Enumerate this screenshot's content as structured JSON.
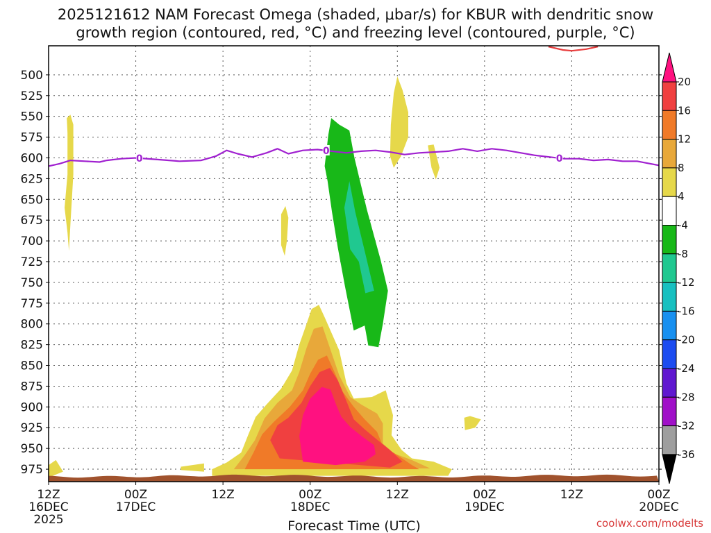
{
  "chart_data": {
    "type": "heatmap",
    "title_line1": "2025121612 NAM Forecast Omega (shaded, μbar/s) for KBUR with dendritic snow",
    "title_line2": "growth region (contoured, red, °C) and freezing level (contoured, purple, °C)",
    "xlabel": "Forecast Time (UTC)",
    "ylabel": "",
    "credit": "coolwx.com/modelts",
    "y_axis": {
      "unit": "hPa",
      "range": [
        990,
        465
      ],
      "tick_labels": [
        "500",
        "525",
        "550",
        "575",
        "600",
        "625",
        "650",
        "675",
        "700",
        "725",
        "750",
        "775",
        "800",
        "825",
        "850",
        "875",
        "900",
        "925",
        "950",
        "975"
      ]
    },
    "x_axis": {
      "unit": "forecast hours",
      "range": [
        0,
        84
      ],
      "ticks": [
        {
          "hour": 0,
          "l1": "12Z",
          "l2": "16DEC",
          "l3": "2025"
        },
        {
          "hour": 12,
          "l1": "00Z",
          "l2": "17DEC",
          "l3": ""
        },
        {
          "hour": 24,
          "l1": "12Z",
          "l2": "",
          "l3": ""
        },
        {
          "hour": 36,
          "l1": "00Z",
          "l2": "18DEC",
          "l3": ""
        },
        {
          "hour": 48,
          "l1": "12Z",
          "l2": "",
          "l3": ""
        },
        {
          "hour": 60,
          "l1": "00Z",
          "l2": "19DEC",
          "l3": ""
        },
        {
          "hour": 72,
          "l1": "12Z",
          "l2": "",
          "l3": ""
        },
        {
          "hour": 84,
          "l1": "00Z",
          "l2": "20DEC",
          "l3": ""
        }
      ]
    },
    "colorbar": {
      "labels": [
        "20",
        "16",
        "12",
        "8",
        "4",
        "-4",
        "-8",
        "-12",
        "-16",
        "-20",
        "-24",
        "-28",
        "-32",
        "-36"
      ],
      "colors": [
        "#ff1180",
        "#f04040",
        "#f07a28",
        "#e8a83a",
        "#e6d84a",
        "#ffffff",
        "#18b818",
        "#20c890",
        "#18c0c0",
        "#1890f0",
        "#1c4cf0",
        "#6018d0",
        "#a010c8",
        "#9e9e9e",
        "#000000"
      ]
    },
    "freezing_level": {
      "label": "0",
      "color": "#a020d0",
      "points": [
        [
          0,
          610
        ],
        [
          1.5,
          607
        ],
        [
          3,
          603
        ],
        [
          5,
          604
        ],
        [
          7,
          605
        ],
        [
          8,
          603
        ],
        [
          10,
          601
        ],
        [
          12,
          600
        ],
        [
          15,
          602
        ],
        [
          18,
          604
        ],
        [
          21,
          603
        ],
        [
          23,
          598
        ],
        [
          24.5,
          591
        ],
        [
          26,
          595
        ],
        [
          28,
          599
        ],
        [
          30,
          594
        ],
        [
          31.5,
          589
        ],
        [
          33,
          595
        ],
        [
          35,
          591
        ],
        [
          37,
          590
        ],
        [
          39,
          592
        ],
        [
          41,
          594
        ],
        [
          43,
          592
        ],
        [
          45,
          591
        ],
        [
          47,
          593
        ],
        [
          49,
          596
        ],
        [
          51,
          594
        ],
        [
          53,
          593
        ],
        [
          55,
          592
        ],
        [
          57,
          589
        ],
        [
          59,
          592
        ],
        [
          61,
          589
        ],
        [
          63,
          591
        ],
        [
          65,
          594
        ],
        [
          67,
          597
        ],
        [
          69,
          599
        ],
        [
          71,
          601
        ],
        [
          73,
          601
        ],
        [
          75,
          603
        ],
        [
          77,
          602
        ],
        [
          79,
          604
        ],
        [
          81,
          604
        ],
        [
          84,
          609
        ]
      ],
      "label_hours": [
        12.5,
        38.2,
        70.3
      ]
    },
    "dgz_contour": {
      "color": "#e83c3c",
      "points": [
        [
          68.8,
          466
        ],
        [
          70.8,
          470
        ],
        [
          72,
          471
        ],
        [
          74,
          469
        ],
        [
          75.6,
          466
        ]
      ]
    },
    "omega_regions": [
      {
        "name": "yellow-early",
        "value": 4,
        "color": "#e6d84a",
        "points": [
          [
            2.5,
            552
          ],
          [
            3.0,
            548
          ],
          [
            3.4,
            560
          ],
          [
            3.4,
            620
          ],
          [
            3.0,
            680
          ],
          [
            2.8,
            712
          ],
          [
            2.6,
            690
          ],
          [
            2.2,
            660
          ],
          [
            2.6,
            620
          ],
          [
            2.6,
            570
          ]
        ]
      },
      {
        "name": "yellow-mid",
        "value": 4,
        "color": "#e6d84a",
        "points": [
          [
            32.0,
            668
          ],
          [
            32.6,
            658
          ],
          [
            33.0,
            672
          ],
          [
            32.8,
            700
          ],
          [
            32.5,
            718
          ],
          [
            32.0,
            705
          ]
        ]
      },
      {
        "name": "yellow-upper",
        "value": 4,
        "color": "#e6d84a",
        "points": [
          [
            47.1,
            560
          ],
          [
            47.5,
            522
          ],
          [
            48.0,
            502
          ],
          [
            48.7,
            518
          ],
          [
            49.5,
            545
          ],
          [
            49.5,
            575
          ],
          [
            48.5,
            598
          ],
          [
            47.5,
            612
          ],
          [
            47.0,
            598
          ]
        ]
      },
      {
        "name": "yellow-upper2",
        "value": 4,
        "color": "#e6d84a",
        "points": [
          [
            52.2,
            585
          ],
          [
            53.0,
            584
          ],
          [
            53.8,
            612
          ],
          [
            53.3,
            626
          ],
          [
            52.7,
            612
          ]
        ]
      },
      {
        "name": "yellow-small",
        "value": 4,
        "color": "#e6d84a",
        "points": [
          [
            57.2,
            913
          ],
          [
            58.0,
            911
          ],
          [
            59.5,
            915
          ],
          [
            58.7,
            925
          ],
          [
            57.3,
            928
          ]
        ]
      },
      {
        "name": "yellow-strip",
        "value": 4,
        "color": "#e6d84a",
        "points": [
          [
            18.2,
            972
          ],
          [
            21.4,
            968
          ],
          [
            21.4,
            978
          ],
          [
            18.2,
            976
          ]
        ]
      },
      {
        "name": "yellow-left",
        "value": 4,
        "color": "#e6d84a",
        "points": [
          [
            0,
            970
          ],
          [
            1.0,
            964
          ],
          [
            2.0,
            978
          ],
          [
            0,
            985
          ]
        ]
      },
      {
        "name": "green-band",
        "value": -4,
        "color": "#18b818",
        "points": [
          [
            38.0,
            610
          ],
          [
            38.5,
            572
          ],
          [
            38.9,
            552
          ],
          [
            40.0,
            560
          ],
          [
            41.4,
            567
          ],
          [
            42.1,
            600
          ],
          [
            43.8,
            662
          ],
          [
            45.7,
            723
          ],
          [
            46.7,
            760
          ],
          [
            46.0,
            800
          ],
          [
            45.4,
            828
          ],
          [
            44.0,
            826
          ],
          [
            43.5,
            802
          ],
          [
            42.0,
            808
          ],
          [
            40.8,
            755
          ],
          [
            39.8,
            708
          ],
          [
            39.0,
            665
          ],
          [
            38.4,
            628
          ]
        ]
      },
      {
        "name": "teal-band",
        "value": -8,
        "color": "#20c890",
        "points": [
          [
            40.7,
            660
          ],
          [
            41.4,
            628
          ],
          [
            42.2,
            665
          ],
          [
            43.5,
            712
          ],
          [
            44.8,
            760
          ],
          [
            43.6,
            763
          ],
          [
            42.7,
            725
          ],
          [
            41.5,
            710
          ]
        ]
      },
      {
        "name": "omega-yellow",
        "value": 4,
        "color": "#e6d84a",
        "points": [
          [
            22.5,
            975
          ],
          [
            24.5,
            967
          ],
          [
            26.5,
            955
          ],
          [
            27.5,
            933
          ],
          [
            28.5,
            912
          ],
          [
            30.0,
            897
          ],
          [
            32.0,
            878
          ],
          [
            33.5,
            856
          ],
          [
            34.5,
            825
          ],
          [
            35.5,
            800
          ],
          [
            36.2,
            782
          ],
          [
            37.2,
            777
          ],
          [
            38.0,
            792
          ],
          [
            40.0,
            832
          ],
          [
            41.0,
            872
          ],
          [
            42.0,
            890
          ],
          [
            44.5,
            888
          ],
          [
            46.4,
            880
          ],
          [
            46.9,
            895
          ],
          [
            47.4,
            910
          ],
          [
            47.2,
            934
          ],
          [
            48.6,
            952
          ],
          [
            50.0,
            962
          ],
          [
            53.0,
            966
          ],
          [
            55.5,
            975
          ],
          [
            55.0,
            983
          ],
          [
            22.5,
            983
          ]
        ]
      },
      {
        "name": "omega-gold",
        "value": 8,
        "color": "#e8a83a",
        "points": [
          [
            25.5,
            975
          ],
          [
            27.0,
            958
          ],
          [
            28.4,
            940
          ],
          [
            29.7,
            914
          ],
          [
            31.5,
            895
          ],
          [
            33.5,
            880
          ],
          [
            34.5,
            858
          ],
          [
            35.5,
            829
          ],
          [
            36.5,
            806
          ],
          [
            37.7,
            803
          ],
          [
            38.6,
            826
          ],
          [
            40.0,
            862
          ],
          [
            41.5,
            888
          ],
          [
            43.0,
            897
          ],
          [
            45.2,
            908
          ],
          [
            46.0,
            920
          ],
          [
            46.0,
            944
          ],
          [
            47.5,
            956
          ],
          [
            50.0,
            964
          ],
          [
            52.5,
            974
          ],
          [
            25.5,
            975
          ]
        ]
      },
      {
        "name": "omega-orange",
        "value": 12,
        "color": "#f07a28",
        "points": [
          [
            27.0,
            975
          ],
          [
            28.2,
            955
          ],
          [
            29.4,
            933
          ],
          [
            31.0,
            918
          ],
          [
            33.2,
            900
          ],
          [
            35.0,
            880
          ],
          [
            36.0,
            860
          ],
          [
            37.1,
            843
          ],
          [
            38.3,
            838
          ],
          [
            39.3,
            857
          ],
          [
            40.5,
            882
          ],
          [
            42.0,
            900
          ],
          [
            43.5,
            915
          ],
          [
            45.2,
            930
          ],
          [
            46.0,
            947
          ],
          [
            48.0,
            958
          ],
          [
            50.0,
            970
          ],
          [
            51.0,
            975
          ]
        ]
      },
      {
        "name": "omega-red",
        "value": 16,
        "color": "#f04040",
        "points": [
          [
            30.5,
            940
          ],
          [
            31.5,
            922
          ],
          [
            33.0,
            913
          ],
          [
            34.8,
            895
          ],
          [
            36.0,
            875
          ],
          [
            37.3,
            858
          ],
          [
            38.7,
            853
          ],
          [
            39.8,
            868
          ],
          [
            41.0,
            893
          ],
          [
            42.0,
            915
          ],
          [
            43.5,
            927
          ],
          [
            45.3,
            940
          ],
          [
            47.0,
            952
          ],
          [
            48.7,
            966
          ],
          [
            47.0,
            973
          ],
          [
            31.8,
            962
          ]
        ]
      },
      {
        "name": "omega-pink",
        "value": 20,
        "color": "#ff1180",
        "points": [
          [
            34.5,
            935
          ],
          [
            35.0,
            910
          ],
          [
            36.0,
            890
          ],
          [
            37.6,
            876
          ],
          [
            38.8,
            879
          ],
          [
            39.6,
            898
          ],
          [
            40.3,
            912
          ],
          [
            41.5,
            924
          ],
          [
            43.2,
            936
          ],
          [
            44.8,
            946
          ],
          [
            45.0,
            957
          ],
          [
            43.5,
            966
          ],
          [
            39.5,
            970
          ],
          [
            35.0,
            966
          ]
        ]
      }
    ]
  }
}
